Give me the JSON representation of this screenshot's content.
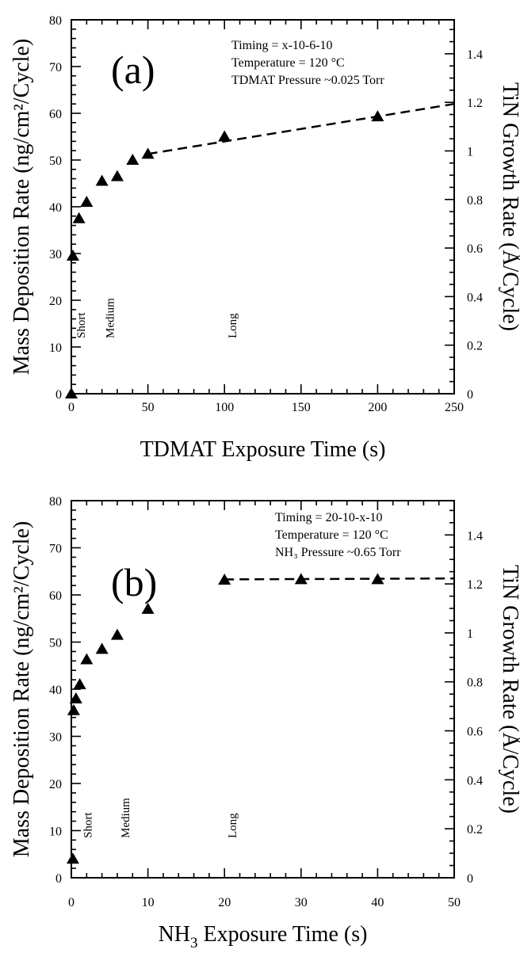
{
  "chart_data": [
    {
      "type": "scatter",
      "panel_label": "(a)",
      "xlabel": "TDMAT Exposure Time (s)",
      "ylabel": "Mass Deposition Rate (ng/cm²/Cycle)",
      "y2label": "TiN Growth Rate (Å/Cycle)",
      "xlim": [
        0,
        250
      ],
      "ylim": [
        0,
        80
      ],
      "y2lim": [
        0,
        1.54
      ],
      "x_major_ticks": [
        0,
        50,
        100,
        150,
        200,
        250
      ],
      "x_tick_labels": [
        "0",
        "50",
        "100",
        "150",
        "200",
        "250"
      ],
      "y_major_ticks": [
        0,
        10,
        20,
        30,
        40,
        50,
        60,
        70,
        80
      ],
      "y_tick_labels": [
        "0",
        "10",
        "20",
        "30",
        "40",
        "50",
        "60",
        "70",
        "80"
      ],
      "y2_major_ticks": [
        0,
        0.2,
        0.4,
        0.6,
        0.8,
        1.0,
        1.2,
        1.4
      ],
      "y2_tick_labels": [
        "0",
        "0.2",
        "0.4",
        "0.6",
        "0.8",
        "1",
        "1.2",
        "1.4"
      ],
      "info_lines": [
        "Timing = x-10-6-10",
        "Temperature = 120 °C",
        "TDMAT Pressure ~0.025 Torr"
      ],
      "series": [
        {
          "points": [
            {
              "x": 0,
              "y": 0
            },
            {
              "x": 1,
              "y": 29.5
            },
            {
              "x": 5,
              "y": 37.5
            },
            {
              "x": 10,
              "y": 41
            },
            {
              "x": 20,
              "y": 45.5
            },
            {
              "x": 30,
              "y": 46.5
            },
            {
              "x": 40,
              "y": 50
            },
            {
              "x": 50,
              "y": 51.3
            },
            {
              "x": 100,
              "y": 55
            },
            {
              "x": 200,
              "y": 59.3
            }
          ]
        }
      ],
      "trend_line": [
        [
          50,
          51.3
        ],
        [
          250,
          62
        ]
      ],
      "exposure_markers": [
        {
          "label": "Short",
          "x": 1,
          "y_top": 29.5,
          "style": "solid"
        },
        {
          "label": "Medium",
          "x": 20,
          "y_top": 45,
          "style": "dotted"
        },
        {
          "label": "Long",
          "x": 100,
          "y_top": 55,
          "style": "dashed"
        }
      ]
    },
    {
      "type": "scatter",
      "panel_label": "(b)",
      "xlabel_main": "NH",
      "xlabel_sub": "3",
      "xlabel_rest": " Exposure Time (s)",
      "ylabel": "Mass Deposition Rate (ng/cm²/Cycle)",
      "y2label": "TiN Growth Rate (Å/Cycle)",
      "xlim": [
        0,
        50
      ],
      "ylim": [
        0,
        80
      ],
      "y2lim": [
        0,
        1.54
      ],
      "x_major_ticks": [
        0,
        10,
        20,
        30,
        40,
        50
      ],
      "x_tick_labels": [
        "0",
        "10",
        "20",
        "30",
        "40",
        "50"
      ],
      "y_major_ticks": [
        0,
        10,
        20,
        30,
        40,
        50,
        60,
        70,
        80
      ],
      "y_tick_labels": [
        "0",
        "10",
        "20",
        "30",
        "40",
        "50",
        "60",
        "70",
        "80"
      ],
      "y2_major_ticks": [
        0,
        0.2,
        0.4,
        0.6,
        0.8,
        1.0,
        1.2,
        1.4
      ],
      "y2_tick_labels": [
        "0",
        "0.2",
        "0.4",
        "0.6",
        "0.8",
        "1",
        "1.2",
        "1.4"
      ],
      "info_lines": [
        "Timing = 20-10-x-10",
        "Temperature = 120 °C",
        "NH₃ Pressure ~0.65 Torr"
      ],
      "series": [
        {
          "points": [
            {
              "x": 0.2,
              "y": 4
            },
            {
              "x": 0.3,
              "y": 35.5
            },
            {
              "x": 0.6,
              "y": 38
            },
            {
              "x": 1.1,
              "y": 41
            },
            {
              "x": 2,
              "y": 46.3
            },
            {
              "x": 4,
              "y": 48.5
            },
            {
              "x": 6,
              "y": 51.5
            },
            {
              "x": 10,
              "y": 57
            },
            {
              "x": 20,
              "y": 63.2
            },
            {
              "x": 30,
              "y": 63.3
            },
            {
              "x": 40,
              "y": 63.3
            }
          ]
        }
      ],
      "trend_line": [
        [
          20,
          63.3
        ],
        [
          50,
          63.5
        ]
      ],
      "exposure_markers": [
        {
          "label": "Short",
          "x": 1.1,
          "y_top": 41,
          "style": "solid"
        },
        {
          "label": "Medium",
          "x": 6,
          "y_top": 51,
          "style": "dotted"
        },
        {
          "label": "Long",
          "x": 20,
          "y_top": 63.2,
          "style": "dashed"
        }
      ]
    }
  ]
}
